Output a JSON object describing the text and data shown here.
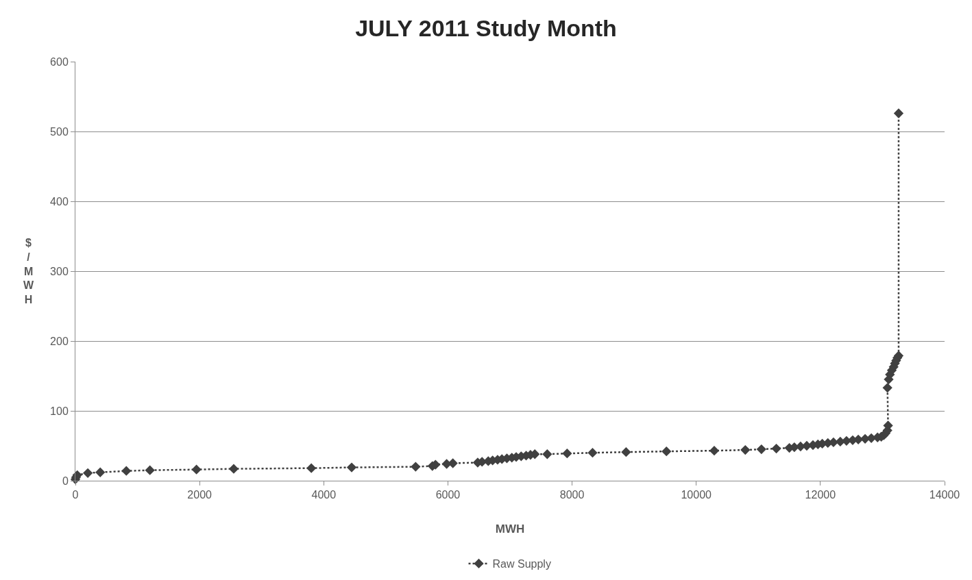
{
  "chart_data": {
    "type": "line",
    "title": "JULY 2011 Study Month",
    "xlabel": "MWH",
    "ylabel": "$/MWH",
    "xlim": [
      0,
      14000
    ],
    "xticks": [
      0,
      2000,
      4000,
      6000,
      8000,
      10000,
      12000,
      14000
    ],
    "ylim": [
      0,
      600
    ],
    "yticks": [
      0,
      100,
      200,
      300,
      400,
      500,
      600
    ],
    "grid": "y",
    "legend": "bottom",
    "marker": "diamond",
    "line_style": "dotted",
    "series": [
      {
        "name": "Raw Supply",
        "color": "#404040",
        "x": [
          0,
          10,
          30,
          200,
          400,
          820,
          1200,
          1950,
          2550,
          3800,
          4450,
          5480,
          5750,
          5800,
          5980,
          6080,
          6480,
          6550,
          6650,
          6720,
          6800,
          6870,
          6950,
          7030,
          7100,
          7180,
          7260,
          7330,
          7400,
          7600,
          7920,
          8330,
          8870,
          9520,
          10290,
          10790,
          11050,
          11290,
          11500,
          11580,
          11680,
          11780,
          11880,
          11960,
          12030,
          12120,
          12210,
          12320,
          12420,
          12520,
          12610,
          12720,
          12820,
          12920,
          12980,
          13020,
          13050,
          13080,
          13090,
          13080,
          13100,
          13120,
          13150,
          13180,
          13200,
          13220,
          13240,
          13260,
          13260
        ],
        "values": [
          2,
          5,
          8,
          11,
          12,
          14,
          15,
          16,
          17,
          18,
          19,
          20,
          21,
          23,
          24,
          25,
          26,
          27,
          28,
          29,
          30,
          31,
          32,
          33,
          34,
          35,
          36,
          37,
          38,
          38,
          39,
          40,
          41,
          42,
          43,
          44,
          45,
          46,
          47,
          48,
          49,
          50,
          51,
          52,
          53,
          54,
          55,
          56,
          57,
          58,
          59,
          60,
          61,
          62,
          63,
          65,
          68,
          72,
          79,
          133,
          145,
          152,
          158,
          163,
          168,
          172,
          176,
          179,
          526
        ]
      }
    ]
  }
}
